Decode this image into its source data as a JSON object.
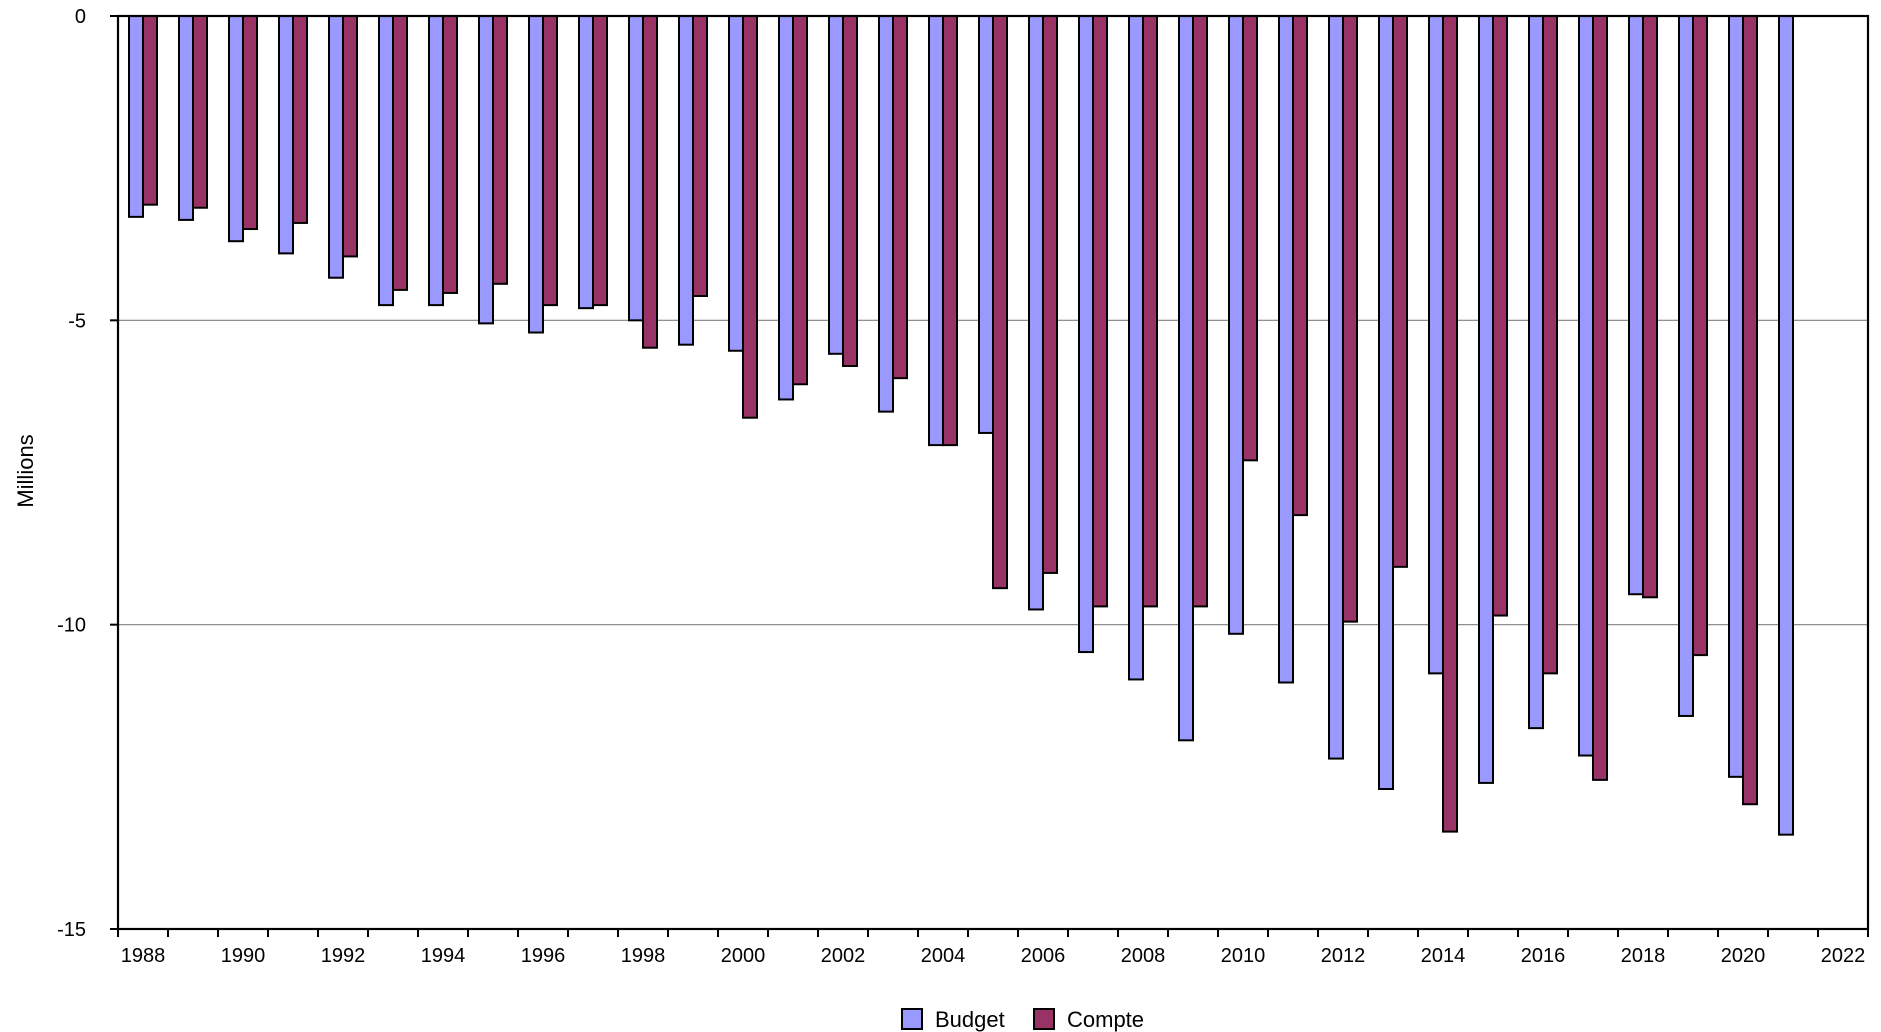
{
  "chart_data": {
    "type": "bar",
    "title": "",
    "xlabel": "",
    "ylabel": "Millions",
    "ylim": [
      -15,
      0
    ],
    "yticks": [
      0,
      -5,
      -10,
      -15
    ],
    "ytick_labels": [
      "0",
      "-5",
      "-10",
      "-15"
    ],
    "xlim": [
      1987.5,
      2022.5
    ],
    "xticks": [
      1988,
      1990,
      1992,
      1994,
      1996,
      1998,
      2000,
      2002,
      2004,
      2006,
      2008,
      2010,
      2012,
      2014,
      2016,
      2018,
      2020,
      2022
    ],
    "xtick_labels": [
      "1988",
      "1990",
      "1992",
      "1994",
      "1996",
      "1998",
      "2000",
      "2002",
      "2004",
      "2006",
      "2008",
      "2010",
      "2012",
      "2014",
      "2016",
      "2018",
      "2020",
      "2022"
    ],
    "grid": true,
    "legend_position": "bottom-center",
    "categories": [
      1988,
      1989,
      1990,
      1991,
      1992,
      1993,
      1994,
      1995,
      1996,
      1997,
      1998,
      1999,
      2000,
      2001,
      2002,
      2003,
      2004,
      2005,
      2006,
      2007,
      2008,
      2009,
      2010,
      2011,
      2012,
      2013,
      2014,
      2015,
      2016,
      2017,
      2018,
      2019,
      2020,
      2021
    ],
    "series": [
      {
        "name": "Budget",
        "color": "#9999ff",
        "values": [
          -3.3,
          -3.35,
          -3.7,
          -3.9,
          -4.3,
          -4.75,
          -4.75,
          -5.05,
          -5.2,
          -4.8,
          -5.0,
          -5.4,
          -5.5,
          -6.3,
          -5.55,
          -6.5,
          -7.05,
          -6.85,
          -9.75,
          -10.45,
          -10.9,
          -11.9,
          -10.15,
          -10.95,
          -12.2,
          -12.7,
          -10.8,
          -12.6,
          -11.7,
          -12.15,
          -9.5,
          -11.5,
          -12.5,
          -13.45
        ]
      },
      {
        "name": "Compte",
        "color": "#993366",
        "values": [
          -3.1,
          -3.15,
          -3.5,
          -3.4,
          -3.95,
          -4.5,
          -4.55,
          -4.4,
          -4.75,
          -4.75,
          -5.45,
          -4.6,
          -6.6,
          -6.05,
          -5.75,
          -5.95,
          -7.05,
          -9.4,
          -9.15,
          -9.7,
          -9.7,
          -9.7,
          -7.3,
          -8.2,
          -9.95,
          -9.05,
          -13.4,
          -9.85,
          -10.8,
          -12.55,
          -9.55,
          -10.5,
          -12.95,
          null
        ]
      }
    ]
  }
}
